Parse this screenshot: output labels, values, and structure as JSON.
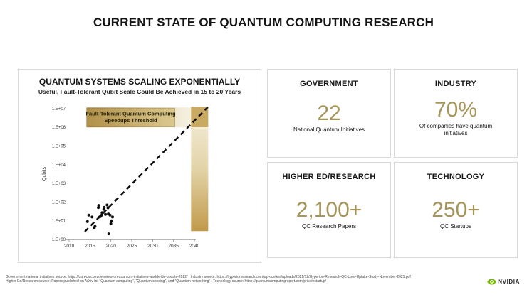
{
  "page": {
    "title": "CURRENT STATE OF QUANTUM COMPUTING RESEARCH"
  },
  "chart": {
    "title": "QUANTUM SYSTEMS SCALING EXPONENTIALLY",
    "subtitle": "Useful, Fault-Tolerant Qubit Scale Could Be Achieved in 15 to 20 Years"
  },
  "chart_data": {
    "type": "scatter",
    "title": "QUANTUM SYSTEMS SCALING EXPONENTIALLY",
    "xlabel": "",
    "ylabel": "Qubits",
    "y_scale": "log",
    "xlim": [
      2010,
      2043.5
    ],
    "ylim": [
      1,
      10000000
    ],
    "x_ticks": [
      2010,
      2015,
      2020,
      2025,
      2030,
      2035,
      2040
    ],
    "y_tick_labels": [
      "1.E+00",
      "1.E+01",
      "1.E+02",
      "1.E+03",
      "1.E+04",
      "1.E+05",
      "1.E+06",
      "1.E+07"
    ],
    "points": [
      [
        2014.4,
        9
      ],
      [
        2014.7,
        20
      ],
      [
        2015.5,
        16
      ],
      [
        2016.0,
        4
      ],
      [
        2016.2,
        5
      ],
      [
        2017.0,
        51
      ],
      [
        2017.1,
        66
      ],
      [
        2017.3,
        16
      ],
      [
        2017.5,
        17
      ],
      [
        2017.8,
        20
      ],
      [
        2017.9,
        27
      ],
      [
        2018.3,
        41
      ],
      [
        2018.4,
        52
      ],
      [
        2018.7,
        22
      ],
      [
        2019.1,
        70
      ],
      [
        2019.3,
        49
      ],
      [
        2019.4,
        23
      ],
      [
        2019.5,
        2
      ],
      [
        2019.8,
        20
      ],
      [
        2020.0,
        7
      ],
      [
        2020.1,
        10
      ],
      [
        2020.4,
        16
      ]
    ],
    "trend_line": {
      "style": "dashed",
      "from": [
        2013.75,
        2.6
      ],
      "to": [
        2043.2,
        12000000
      ]
    },
    "threshold_band": {
      "label": "Fault-Tolerant Quantum Computing Speedups Threshold",
      "label_lines": [
        "Fault-Tolerant Quantum Computing",
        "Speedups Threshold"
      ],
      "x_range": [
        2014.2,
        2043.3
      ],
      "y_range": [
        1000000,
        11500000
      ],
      "label_box_x_range": [
        2014.2,
        2035.3
      ]
    },
    "projection_bar": {
      "x_range": [
        2039.2,
        2043.3
      ],
      "y_range": [
        2.8,
        12500000
      ]
    }
  },
  "cards": [
    {
      "title": "GOVERNMENT",
      "value": "22",
      "label": "National Quantum Initiatives"
    },
    {
      "title": "INDUSTRY",
      "value": "70%",
      "label": "Of companies have quantum initiatives"
    },
    {
      "title": "HIGHER ED/RESEARCH",
      "value": "2,100+",
      "label": "QC Research Papers"
    },
    {
      "title": "TECHNOLOGY",
      "value": "250+",
      "label": "QC Startups"
    }
  ],
  "footer": {
    "line1": "Government national initiatives source: https://qureca.com/overview-on-quantum-initiatives-worldwide-update-2022/  |  Industry source: https://hyperionresearch.com/wp-content/uploads/2021/12/Hyperion-Research-QC-User-Uptake-Study-November-2021.pdf",
    "line2": "Higher Ed/Research source:  Papers published on ArXiv for “Quantum computing”, “Quantum sensing”, and “Quantum networking”  |  Technology source: https://quantumcomputingreport.com/privatestartup/",
    "logo_text": "NVIDIA"
  },
  "colors": {
    "accent_gold": "#a79659",
    "band_gold_dark": "#ad8b42",
    "band_gold_mid": "#e9dfc0",
    "band_gold_light": "#fbfaf5",
    "box_gold_left": "#b0904a",
    "box_gold_right": "#dcc98f",
    "bar_top": "#efe6cc",
    "bar_mid": "#e2d3a8",
    "bar_bottom": "#c19a4a",
    "bar_band_segment": "#c9aa63",
    "threshold_text": "#262009",
    "point_black": "#0d0d0d",
    "axis_gray": "#8c8c8c",
    "nvidia_green": "#76b900"
  }
}
